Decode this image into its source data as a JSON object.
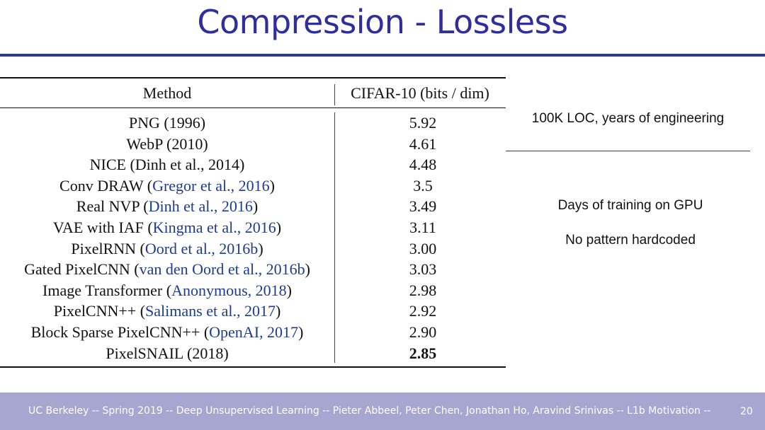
{
  "slide": {
    "title": "Compression - Lossless",
    "footer": "UC Berkeley -- Spring 2019 -- Deep Unsupervised Learning -- Pieter Abbeel, Peter Chen, Jonathan Ho, Aravind Srinivas -- L1b Motivation --",
    "page_number": "20"
  },
  "table": {
    "headers": {
      "method": "Method",
      "score": "CIFAR-10 (bits / dim)"
    },
    "rows": [
      {
        "name": "PNG (1996)",
        "cite": "",
        "suffix": "",
        "score": "5.92"
      },
      {
        "name": "WebP (2010)",
        "cite": "",
        "suffix": "",
        "score": "4.61"
      },
      {
        "name": "NICE (Dinh et al., 2014)",
        "cite": "",
        "suffix": "",
        "score": "4.48"
      },
      {
        "name": "Conv DRAW (",
        "cite": "Gregor et al., 2016",
        "suffix": ")",
        "score": "3.5"
      },
      {
        "name": "Real NVP (",
        "cite": "Dinh et al., 2016",
        "suffix": ")",
        "score": "3.49"
      },
      {
        "name": "VAE with IAF (",
        "cite": "Kingma et al., 2016",
        "suffix": ")",
        "score": "3.11"
      },
      {
        "name": "PixelRNN (",
        "cite": "Oord et al., 2016b",
        "suffix": ")",
        "score": "3.00"
      },
      {
        "name": "Gated PixelCNN (",
        "cite": "van den Oord et al., 2016b",
        "suffix": ")",
        "score": "3.03"
      },
      {
        "name": "Image Transformer (",
        "cite": "Anonymous, 2018",
        "suffix": ")",
        "score": "2.98"
      },
      {
        "name": "PixelCNN++ (",
        "cite": "Salimans et al., 2017",
        "suffix": ")",
        "score": "2.92"
      },
      {
        "name": "Block Sparse PixelCNN++ (",
        "cite": "OpenAI, 2017",
        "suffix": ")",
        "score": "2.90"
      },
      {
        "name": "PixelSNAIL (2018)",
        "cite": "",
        "suffix": "",
        "score": "2.85",
        "bold": true
      }
    ]
  },
  "notes": {
    "engineering": "100K LOC, years of engineering",
    "training": "Days of training on GPU",
    "hardcoded": "No pattern hardcoded"
  },
  "colors": {
    "title": "#2e2e9e",
    "rule": "#2f3a8c",
    "citation": "#1d3c8f",
    "footer_bg": "#a6a6d0"
  }
}
